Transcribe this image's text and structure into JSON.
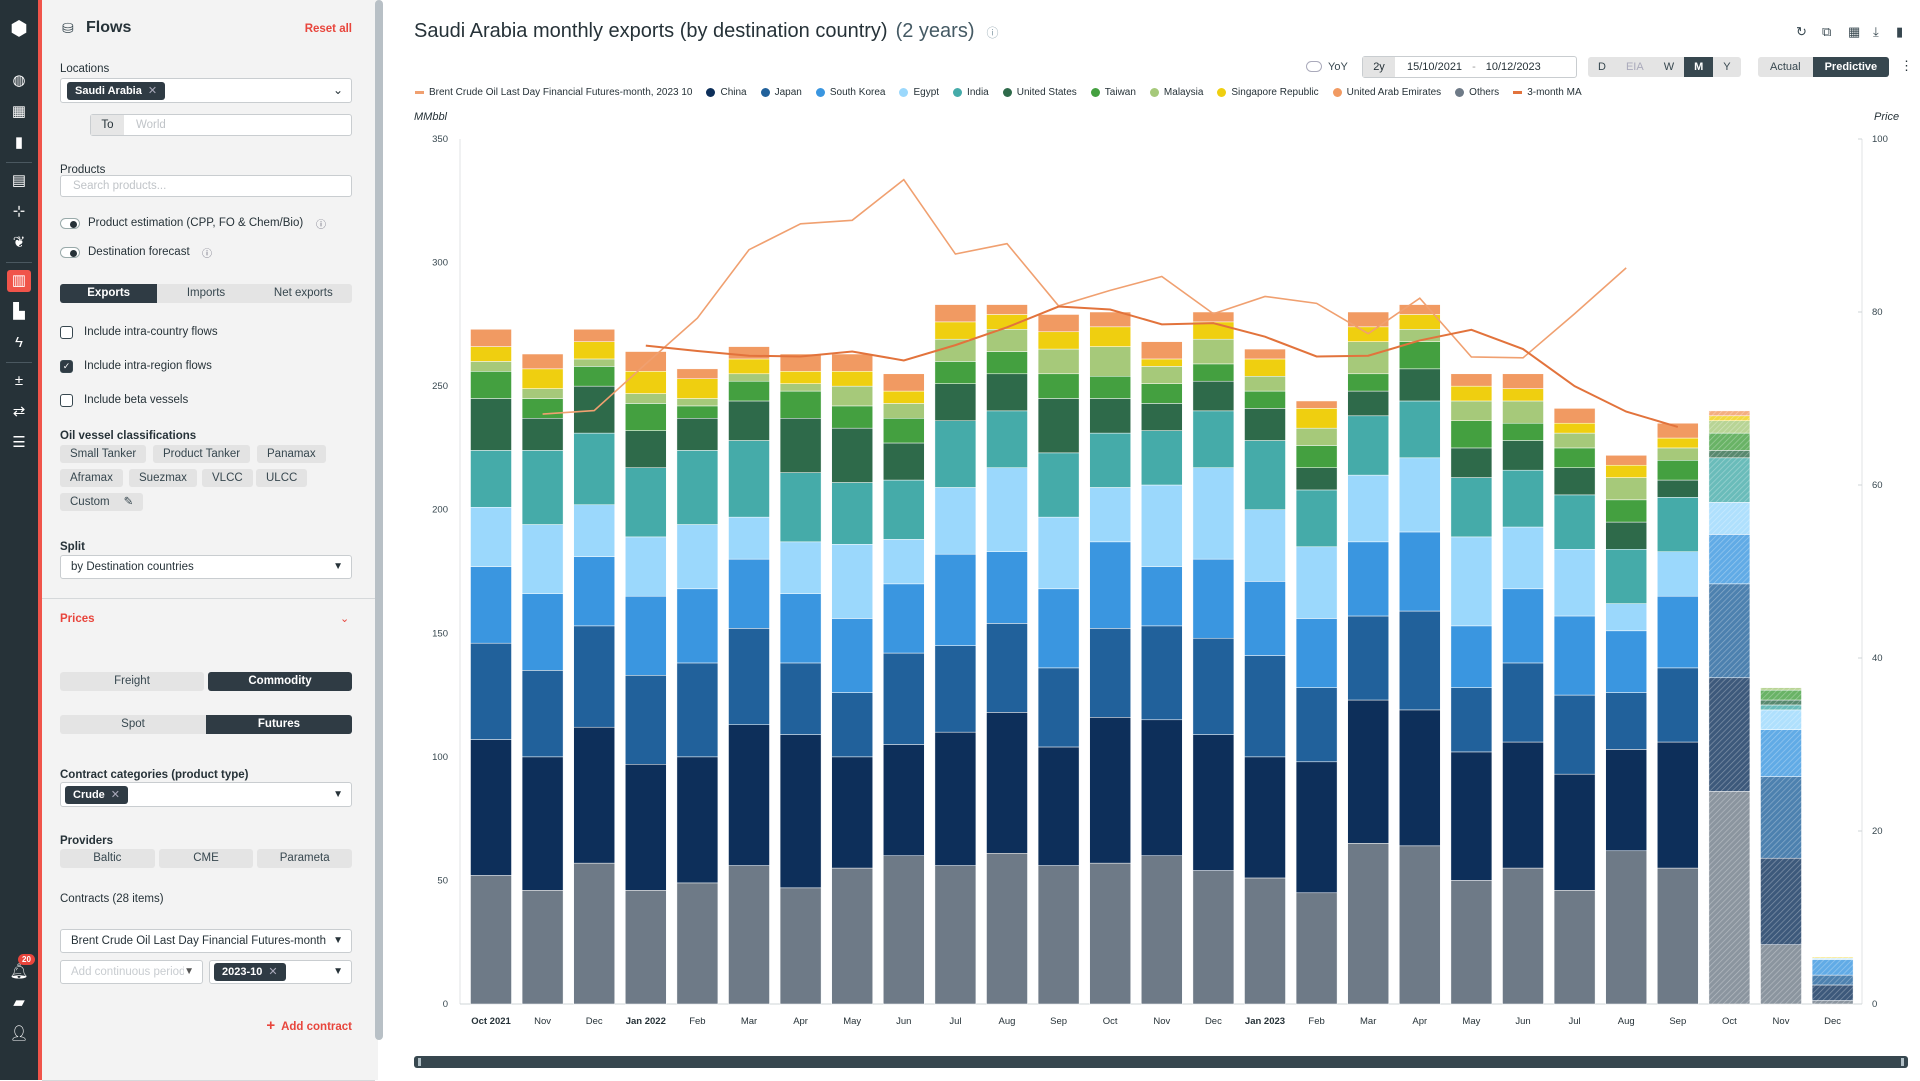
{
  "rail": {
    "badge": "20"
  },
  "panel": {
    "title": "Flows",
    "reset": "Reset all",
    "locations_label": "Locations",
    "location_chip": "Saudi Arabia",
    "to_label": "To",
    "to_placeholder": "World",
    "products_label": "Products",
    "products_placeholder": "Search products...",
    "toggle_estimation": "Product estimation (CPP, FO & Chem/Bio)",
    "toggle_forecast": "Destination forecast",
    "flow_tabs": [
      "Exports",
      "Imports",
      "Net exports"
    ],
    "checkboxes": [
      {
        "label": "Include intra-country flows",
        "checked": false
      },
      {
        "label": "Include intra-region flows",
        "checked": true
      },
      {
        "label": "Include beta vessels",
        "checked": false
      }
    ],
    "vessel_label": "Oil vessel classifications",
    "vessels": [
      "Small Tanker",
      "Product Tanker",
      "Panamax",
      "Aframax",
      "Suezmax",
      "VLCC",
      "ULCC",
      "Custom"
    ],
    "split_label": "Split",
    "split_value": "by Destination countries",
    "prices_label": "Prices",
    "price_type": [
      "Freight",
      "Commodity"
    ],
    "price_mode": [
      "Spot",
      "Futures"
    ],
    "contract_cat_label": "Contract categories (product type)",
    "contract_cat_chip": "Crude",
    "providers_label": "Providers",
    "providers": [
      "Baltic",
      "CME",
      "Parameta"
    ],
    "contracts_label": "Contracts (28 items)",
    "contract_value": "Brent Crude Oil Last Day Financial Futures-month",
    "period_placeholder": "Add continuous period",
    "period_chip": "2023-10",
    "add_contract": "Add contract"
  },
  "header": {
    "title": "Saudi Arabia monthly exports (by destination country)",
    "subtitle": "(2 years)",
    "yoy": "YoY",
    "range": "2y",
    "date_from": "15/10/2021",
    "date_sep": "-",
    "date_to": "10/12/2023",
    "freq": [
      "D",
      "EIA",
      "W",
      "M",
      "Y"
    ],
    "freq_active": "M",
    "modes": [
      "Actual",
      "Predictive"
    ],
    "mode_active": "Predictive"
  },
  "chart_data": {
    "type": "bar",
    "stacked": true,
    "ylabel": "MMbbl",
    "y2label": "Price",
    "ylim": [
      0,
      350
    ],
    "y2lim": [
      0,
      100
    ],
    "yticks": [
      0,
      50,
      100,
      150,
      200,
      250,
      300,
      350
    ],
    "y2ticks": [
      0,
      20,
      40,
      60,
      80,
      100
    ],
    "categories": [
      "Oct 2021",
      "Nov",
      "Dec",
      "Jan 2022",
      "Feb",
      "Mar",
      "Apr",
      "May",
      "Jun",
      "Jul",
      "Aug",
      "Sep",
      "Oct",
      "Nov",
      "Dec",
      "Jan 2023",
      "Feb",
      "Mar",
      "Apr",
      "May",
      "Jun",
      "Jul",
      "Aug",
      "Sep",
      "Oct",
      "Nov",
      "Dec"
    ],
    "predicted": [
      false,
      false,
      false,
      false,
      false,
      false,
      false,
      false,
      false,
      false,
      false,
      false,
      false,
      false,
      false,
      false,
      false,
      false,
      false,
      false,
      false,
      false,
      false,
      false,
      true,
      true,
      true
    ],
    "series": [
      {
        "name": "Others",
        "color": "#6e7a87",
        "values": [
          52,
          46,
          57,
          46,
          49,
          56,
          47,
          55,
          60,
          56,
          61,
          56,
          57,
          60,
          54,
          51,
          45,
          65,
          64,
          50,
          55,
          46,
          62,
          55,
          86,
          24,
          1.4
        ]
      },
      {
        "name": "China",
        "color": "#0d2f5a",
        "values": [
          55,
          54,
          55,
          51,
          51,
          57,
          62,
          45,
          45,
          54,
          57,
          48,
          59,
          55,
          55,
          49,
          53,
          58,
          55,
          52,
          51,
          47,
          41,
          51,
          46,
          35,
          6.3
        ]
      },
      {
        "name": "Japan",
        "color": "#21619b",
        "values": [
          39,
          35,
          41,
          36,
          38,
          39,
          29,
          26,
          37,
          35,
          36,
          32,
          36,
          38,
          39,
          41,
          30,
          34,
          40,
          26,
          32,
          32,
          23,
          30,
          38,
          33,
          4
        ]
      },
      {
        "name": "South Korea",
        "color": "#3a96e0",
        "values": [
          31,
          31,
          28,
          32,
          30,
          28,
          28,
          30,
          28,
          37,
          29,
          32,
          35,
          24,
          32,
          30,
          28,
          30,
          32,
          25,
          30,
          32,
          25,
          29,
          20,
          19,
          6.3
        ]
      },
      {
        "name": "Egypt",
        "color": "#9bd8fc",
        "values": [
          24,
          28,
          21,
          24,
          26,
          17,
          21,
          30,
          18,
          27,
          34,
          29,
          22,
          33,
          37,
          29,
          29,
          27,
          30,
          36,
          25,
          27,
          11,
          18,
          13,
          8,
          0.5
        ]
      },
      {
        "name": "India",
        "color": "#45aba9",
        "values": [
          23,
          30,
          29,
          28,
          30,
          31,
          28,
          25,
          24,
          27,
          23,
          26,
          22,
          22,
          23,
          28,
          23,
          24,
          23,
          24,
          23,
          22,
          22,
          22,
          18,
          2,
          0
        ]
      },
      {
        "name": "United States",
        "color": "#2e6a4a",
        "values": [
          21,
          13,
          19,
          15,
          13,
          16,
          22,
          22,
          15,
          15,
          15,
          22,
          14,
          11,
          12,
          13,
          9,
          10,
          13,
          12,
          12,
          11,
          11,
          7,
          3,
          2,
          0
        ]
      },
      {
        "name": "Taiwan",
        "color": "#44a040",
        "values": [
          11,
          8,
          8,
          11,
          5,
          8,
          11,
          9,
          10,
          9,
          9,
          10,
          9,
          8,
          7,
          7,
          9,
          7,
          11,
          11,
          7,
          8,
          9,
          8,
          7,
          4,
          0
        ]
      },
      {
        "name": "Malaysia",
        "color": "#a6c97a",
        "values": [
          4,
          4,
          3,
          4,
          3,
          3,
          3,
          8,
          6,
          9,
          9,
          10,
          12,
          7,
          10,
          6,
          7,
          13,
          5,
          8,
          9,
          6,
          9,
          5,
          5,
          1,
          0
        ]
      },
      {
        "name": "Singapore Republic",
        "color": "#efcf10",
        "values": [
          6,
          8,
          7,
          9,
          8,
          6,
          5,
          6,
          5,
          7,
          6,
          7,
          8,
          3,
          7,
          7,
          8,
          6,
          6,
          6,
          5,
          4,
          5,
          4,
          2,
          0,
          0.4
        ]
      },
      {
        "name": "United Arab Emirates",
        "color": "#f19a62",
        "values": [
          7,
          6,
          5,
          8,
          4,
          5,
          7,
          7,
          7,
          7,
          4,
          7,
          6,
          7,
          4,
          4,
          3,
          6,
          4,
          5,
          6,
          6,
          4,
          6,
          2,
          0,
          0
        ]
      }
    ],
    "lines": [
      {
        "name": "Brent Crude Oil Last Day Financial Futures-month, 2023 10",
        "color": "#f0a070",
        "axis": "right",
        "values": [
          null,
          68.2,
          68.6,
          74,
          79.3,
          87.2,
          90.2,
          90.6,
          95.3,
          86.7,
          87.9,
          80.7,
          82.5,
          84.1,
          79.8,
          81.8,
          81.0,
          77.5,
          81.6,
          74.8,
          74.7,
          79.8,
          85.1,
          null,
          null,
          null,
          null
        ]
      },
      {
        "name": "3-month MA",
        "color": "#e2733c",
        "axis": "left",
        "values": [
          null,
          null,
          null,
          266.4,
          264.2,
          262.3,
          262,
          264,
          260.4,
          266.6,
          273.8,
          282.2,
          281,
          275,
          275.5,
          270,
          262,
          262.3,
          268.5,
          272.8,
          265,
          250,
          239.7,
          233.5,
          null,
          null,
          null
        ]
      }
    ],
    "legend_placement": "top"
  }
}
